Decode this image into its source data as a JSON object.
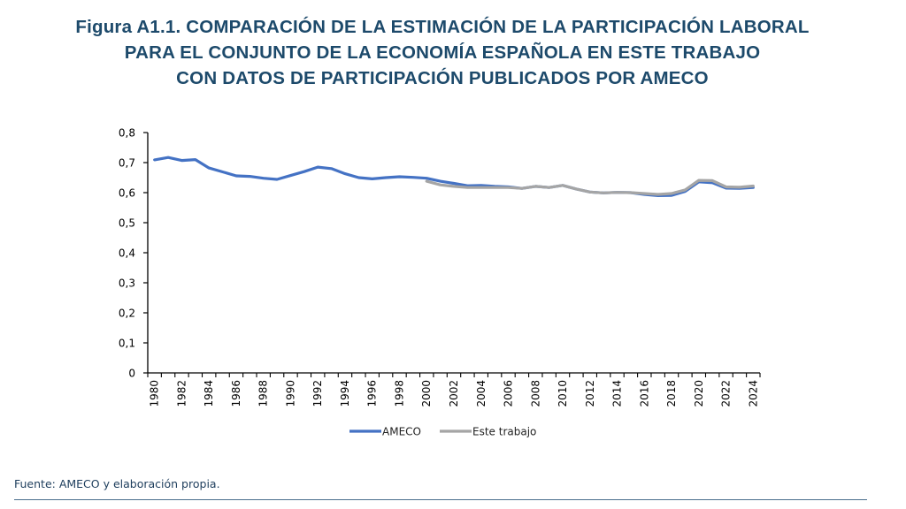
{
  "title": {
    "lines": [
      "Figura A1.1. COMPARACIÓN DE LA ESTIMACIÓN DE LA PARTICIPACIÓN LABORAL",
      "PARA EL CONJUNTO DE LA ECONOMÍA ESPAÑOLA EN ESTE TRABAJO",
      "CON DATOS DE PARTICIPACIÓN PUBLICADOS POR AMECO"
    ]
  },
  "source": "Fuente: AMECO y elaboración propia.",
  "chart_data": {
    "type": "line",
    "title": "Figura A1.1. COMPARACIÓN DE LA ESTIMACIÓN DE LA PARTICIPACIÓN LABORAL PARA EL CONJUNTO DE LA ECONOMÍA ESPAÑOLA EN ESTE TRABAJO CON DATOS DE PARTICIPACIÓN PUBLICADOS POR AMECO",
    "xlabel": "",
    "ylabel": "",
    "ylim": [
      0,
      0.8
    ],
    "yticks": [
      "0",
      "0,1",
      "0,2",
      "0,3",
      "0,4",
      "0,5",
      "0,6",
      "0,7",
      "0,8"
    ],
    "ytick_values": [
      0,
      0.1,
      0.2,
      0.3,
      0.4,
      0.5,
      0.6,
      0.7,
      0.8
    ],
    "x": [
      1980,
      1981,
      1982,
      1983,
      1984,
      1985,
      1986,
      1987,
      1988,
      1989,
      1990,
      1991,
      1992,
      1993,
      1994,
      1995,
      1996,
      1997,
      1998,
      1999,
      2000,
      2001,
      2002,
      2003,
      2004,
      2005,
      2006,
      2007,
      2008,
      2009,
      2010,
      2011,
      2012,
      2013,
      2014,
      2015,
      2016,
      2017,
      2018,
      2019,
      2020,
      2021,
      2022,
      2023,
      2024
    ],
    "xtick_labels_every": 2,
    "grid": false,
    "legend": "bottom",
    "series": [
      {
        "name": "AMECO",
        "color": "#4472c4",
        "values": [
          0.709,
          0.717,
          0.707,
          0.71,
          0.682,
          0.669,
          0.656,
          0.654,
          0.648,
          0.644,
          0.657,
          0.67,
          0.685,
          0.68,
          0.663,
          0.65,
          0.646,
          0.65,
          0.653,
          0.651,
          0.648,
          0.638,
          0.631,
          0.623,
          0.624,
          0.621,
          0.619,
          0.614,
          0.621,
          0.617,
          0.624,
          0.612,
          0.602,
          0.599,
          0.601,
          0.6,
          0.594,
          0.59,
          0.591,
          0.604,
          0.636,
          0.633,
          0.615,
          0.614,
          0.617
        ]
      },
      {
        "name": "Este trabajo",
        "color": "#a5a5a5",
        "values": [
          null,
          null,
          null,
          null,
          null,
          null,
          null,
          null,
          null,
          null,
          null,
          null,
          null,
          null,
          null,
          null,
          null,
          null,
          null,
          null,
          0.638,
          0.626,
          0.621,
          0.617,
          0.617,
          0.617,
          0.617,
          0.614,
          0.621,
          0.617,
          0.624,
          0.612,
          0.602,
          0.599,
          0.601,
          0.6,
          0.597,
          0.594,
          0.597,
          0.609,
          0.641,
          0.64,
          0.619,
          0.618,
          0.622
        ]
      }
    ]
  }
}
